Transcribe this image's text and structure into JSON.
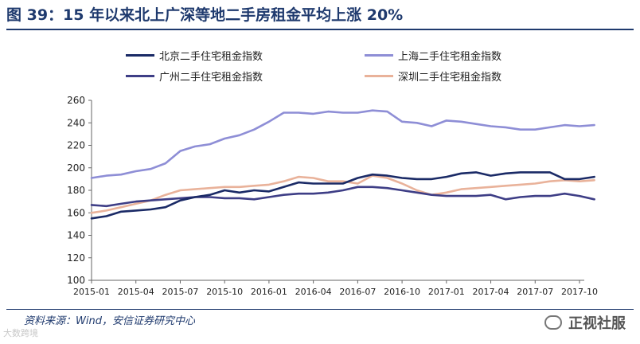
{
  "header": {
    "title": "图 39：15 年以来北上广深等地二手房租金平均上涨 20%"
  },
  "legend": [
    {
      "label": "北京二手住宅租金指数",
      "color": "#1a2a66"
    },
    {
      "label": "上海二手住宅租金指数",
      "color": "#8e8ed6"
    },
    {
      "label": "广州二手住宅租金指数",
      "color": "#3e3e86"
    },
    {
      "label": "深圳二手住宅租金指数",
      "color": "#e9b29a"
    }
  ],
  "footer": {
    "source": "资料来源：Wind，安信证券研究中心",
    "watermark_left": "大数跨境",
    "watermark_right": "正视社服",
    "watermark_icon": "wechat-icon"
  },
  "chart_data": {
    "type": "line",
    "title": "15 年以来北上广深等地二手房租金平均上涨 20%",
    "xlabel": "",
    "ylabel": "",
    "ylim": [
      100,
      260
    ],
    "yticks": [
      100,
      120,
      140,
      160,
      180,
      200,
      220,
      240,
      260
    ],
    "x": [
      "2015-01",
      "2015-02",
      "2015-03",
      "2015-04",
      "2015-05",
      "2015-06",
      "2015-07",
      "2015-08",
      "2015-09",
      "2015-10",
      "2015-11",
      "2015-12",
      "2016-01",
      "2016-02",
      "2016-03",
      "2016-04",
      "2016-05",
      "2016-06",
      "2016-07",
      "2016-08",
      "2016-09",
      "2016-10",
      "2016-11",
      "2016-12",
      "2017-01",
      "2017-02",
      "2017-03",
      "2017-04",
      "2017-05",
      "2017-06",
      "2017-07",
      "2017-08",
      "2017-09",
      "2017-10",
      "2017-11"
    ],
    "xticks": [
      "2015-01",
      "2015-04",
      "2015-07",
      "2015-10",
      "2016-01",
      "2016-04",
      "2016-07",
      "2016-10",
      "2017-01",
      "2017-04",
      "2017-07",
      "2017-10"
    ],
    "legend_position": "top",
    "grid": false,
    "series": [
      {
        "name": "北京二手住宅租金指数",
        "color": "#1a2a66",
        "values": [
          155,
          157,
          161,
          162,
          163,
          165,
          171,
          174,
          176,
          180,
          178,
          180,
          179,
          183,
          187,
          186,
          186,
          186,
          191,
          194,
          193,
          191,
          190,
          190,
          192,
          195,
          196,
          193,
          195,
          196,
          196,
          196,
          190,
          190,
          192
        ]
      },
      {
        "name": "上海二手住宅租金指数",
        "color": "#8e8ed6",
        "values": [
          191,
          193,
          194,
          197,
          199,
          204,
          215,
          219,
          221,
          226,
          229,
          234,
          241,
          249,
          249,
          248,
          250,
          249,
          249,
          251,
          250,
          241,
          240,
          237,
          242,
          241,
          239,
          237,
          236,
          234,
          234,
          236,
          238,
          237,
          238
        ]
      },
      {
        "name": "广州二手住宅租金指数",
        "color": "#3e3e86",
        "values": [
          167,
          166,
          168,
          170,
          171,
          172,
          173,
          174,
          174,
          173,
          173,
          172,
          174,
          176,
          177,
          177,
          178,
          180,
          183,
          183,
          182,
          180,
          178,
          176,
          175,
          175,
          175,
          176,
          172,
          174,
          175,
          175,
          177,
          175,
          172
        ]
      },
      {
        "name": "深圳二手住宅租金指数",
        "color": "#e9b29a",
        "values": [
          160,
          162,
          165,
          168,
          171,
          176,
          180,
          181,
          182,
          183,
          183,
          184,
          185,
          188,
          192,
          191,
          188,
          188,
          186,
          193,
          191,
          186,
          180,
          176,
          178,
          181,
          182,
          183,
          184,
          185,
          186,
          188,
          189,
          188,
          189
        ]
      }
    ]
  }
}
